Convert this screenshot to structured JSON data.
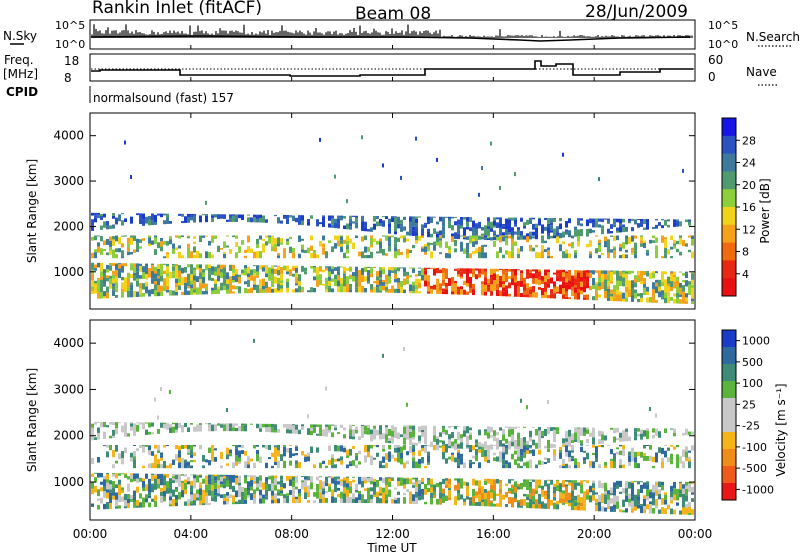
{
  "header": {
    "station": "Rankin Inlet (fitACF)",
    "beam": "Beam 08",
    "date": "28/Jun/2009"
  },
  "noise_panel": {
    "left_label": "N.Sky",
    "right_label": "N.Search",
    "left_ticks": [
      "10^5",
      "10^0"
    ],
    "right_ticks": [
      "10^5",
      "10^0"
    ]
  },
  "freq_panel": {
    "left_label": "Freq.",
    "left_unit": "[MHz]",
    "right_label": "Nave",
    "left_ticks": [
      "18",
      "8"
    ],
    "right_ticks": [
      "60",
      "0"
    ],
    "cpid_label": "CPID",
    "cpid_value": "normalsound (fast) 157"
  },
  "chart_data": [
    {
      "type": "heatmap",
      "name": "power",
      "ylabel": "Slant Range [km]",
      "yticks": [
        "1000",
        "2000",
        "3000",
        "4000"
      ],
      "ylim": [
        180,
        4500
      ],
      "colorbar": {
        "label": "Power [dB]",
        "ticks": [
          "4",
          "8",
          "12",
          "16",
          "20",
          "24",
          "28"
        ],
        "colors": [
          "#1515e6",
          "#2a52c0",
          "#3d7a9c",
          "#4f9a6e",
          "#8ccf3a",
          "#f2d21a",
          "#f5a21a",
          "#f06a10",
          "#e82810",
          "#e81010"
        ]
      }
    },
    {
      "type": "heatmap",
      "name": "velocity",
      "ylabel": "Slant Range [km]",
      "yticks": [
        "1000",
        "2000",
        "3000",
        "4000"
      ],
      "ylim": [
        180,
        4500
      ],
      "colorbar": {
        "label": "Velocity [m s⁻¹]",
        "ticks": [
          "1000",
          "500",
          "100",
          "25",
          "-25",
          "-100",
          "-500",
          "-1000"
        ],
        "colors": [
          "#1a3cc8",
          "#2e6aa0",
          "#3e8c78",
          "#5ab43c",
          "#c8c8c8",
          "#c8c8c8",
          "#f5b41a",
          "#f08c1a",
          "#f05a1a",
          "#e81818"
        ]
      }
    }
  ],
  "x_axis": {
    "label": "Time UT",
    "ticks": [
      "00:00",
      "04:00",
      "08:00",
      "12:00",
      "16:00",
      "20:00",
      "00:00"
    ]
  }
}
